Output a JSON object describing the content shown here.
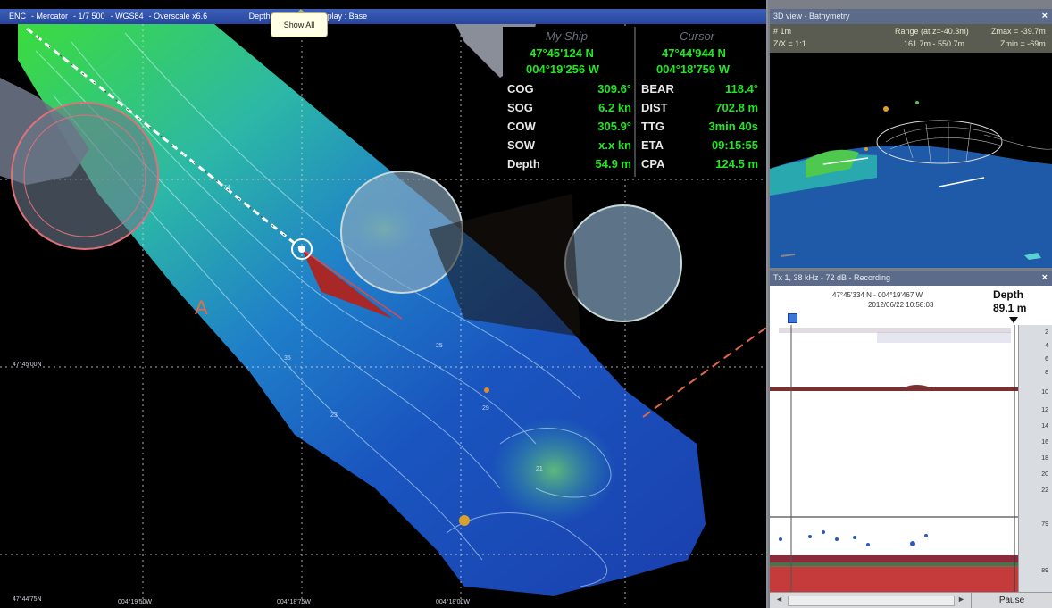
{
  "titlebar": {
    "items": [
      "ENC",
      "Mercator",
      "1/7 500",
      "WGS84",
      "Overscale x6.6",
      "Depth in meters",
      "Display : Base"
    ]
  },
  "tooltip": {
    "label": "Show All"
  },
  "map": {
    "lat_labels": [
      "47°45'00N",
      "47°44'75N"
    ],
    "lon_labels": [
      "004°19'50W",
      "004°18'75W",
      "004°18'00W"
    ],
    "icons": [
      "ship-icon",
      "route-line",
      "heading-arrow",
      "range-circle"
    ]
  },
  "info": {
    "my_ship_header": "My Ship",
    "cursor_header": "Cursor",
    "ship_lat": "47°45'124 N",
    "ship_lon": "004°19'256 W",
    "cursor_lat": "47°44'944 N",
    "cursor_lon": "004°18'759 W",
    "left": [
      {
        "label": "COG",
        "value": "309.6°"
      },
      {
        "label": "SOG",
        "value": "6.2 kn"
      },
      {
        "label": "COW",
        "value": "305.9°"
      },
      {
        "label": "SOW",
        "value": "x.x kn"
      },
      {
        "label": "Depth",
        "value": "54.9 m"
      }
    ],
    "right": [
      {
        "label": "BEAR",
        "value": "118.4°"
      },
      {
        "label": "DIST",
        "value": "702.8 m"
      },
      {
        "label": "TTG",
        "value": "3min 40s"
      },
      {
        "label": "ETA",
        "value": "09:15:55"
      },
      {
        "label": "CPA",
        "value": "124.5 m"
      }
    ]
  },
  "panel3d": {
    "title": "3D view - Bathymetry",
    "close": "×",
    "row1_left": "# 1m",
    "row1_mid": "Range (at z=-40.3m)",
    "row1_right": "Zmax = -39.7m",
    "row2_left": "Z/X = 1:1",
    "row2_mid": "161.7m - 550.7m",
    "row2_right": "Zmin = -69m"
  },
  "echo": {
    "title": "Tx 1, 38 kHz - 72 dB - Recording",
    "close": "×",
    "position": "47°45'334 N - 004°19'467 W",
    "datetime": "2012/06/22 10:58:03",
    "depth_label": "Depth",
    "depth_value": "89.1 m",
    "scale": [
      "2",
      "4",
      "6",
      "8",
      "10",
      "12",
      "14",
      "16",
      "18",
      "20",
      "22"
    ],
    "lower_scale_top": "79",
    "lower_scale_bottom": "89",
    "pause_label": "Pause",
    "nav_left": "◄",
    "nav_right": "►"
  }
}
